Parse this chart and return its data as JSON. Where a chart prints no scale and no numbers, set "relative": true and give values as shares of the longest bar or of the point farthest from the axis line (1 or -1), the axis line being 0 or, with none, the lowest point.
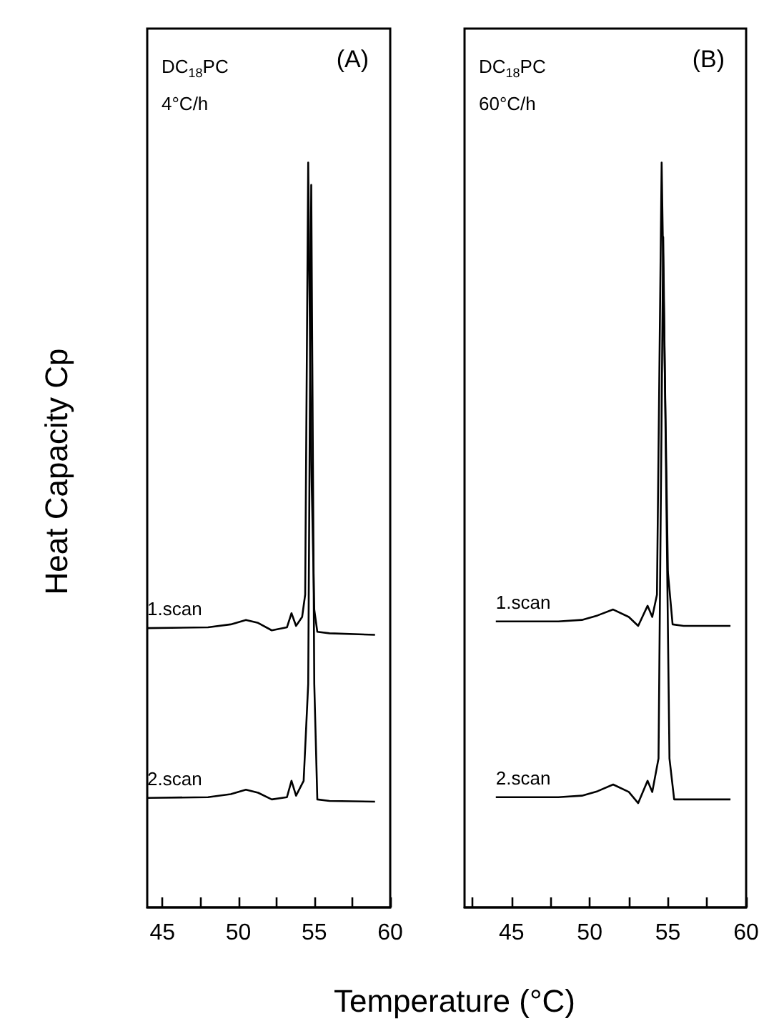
{
  "chart_data": [
    {
      "type": "line",
      "title": "(A)",
      "relative": true,
      "xlabel": "Temperature (°C)",
      "ylabel": "Heat Capacity Cp",
      "annotations": [
        "DC$_{18}$PC",
        "4°C/h"
      ],
      "xlim": [
        44,
        60
      ],
      "xticks": [
        45,
        {
          "value": 47.5,
          "label": null
        },
        50,
        {
          "value": 52.5,
          "label": null
        },
        55,
        {
          "value": 57.5,
          "label": null
        },
        60
      ],
      "series": [
        {
          "name": "1.scan",
          "color": "#000000",
          "x": [
            44,
            48,
            49.5,
            50.5,
            51.3,
            52.2,
            53.2,
            53.5,
            53.8,
            54.2,
            54.4,
            54.6,
            54.8,
            55.0,
            55.2,
            56,
            59
          ],
          "values": [
            0.375,
            0.376,
            0.38,
            0.386,
            0.382,
            0.372,
            0.376,
            0.395,
            0.378,
            0.39,
            0.42,
            1.0,
            0.6,
            0.4,
            0.37,
            0.368,
            0.366
          ]
        },
        {
          "name": "2.scan",
          "color": "#000000",
          "x": [
            44,
            48,
            49.5,
            50.5,
            51.3,
            52.2,
            53.2,
            53.5,
            53.8,
            54.3,
            54.6,
            54.8,
            55.0,
            55.2,
            56,
            59
          ],
          "values": [
            0.147,
            0.148,
            0.152,
            0.158,
            0.154,
            0.145,
            0.148,
            0.17,
            0.15,
            0.17,
            0.3,
            0.97,
            0.3,
            0.145,
            0.143,
            0.142
          ]
        }
      ]
    },
    {
      "type": "line",
      "title": "(B)",
      "relative": true,
      "annotations": [
        "DC$_{18}$PC",
        "60°C/h"
      ],
      "xlim": [
        42,
        60
      ],
      "xticks": [
        {
          "value": 42.5,
          "label": null
        },
        45,
        {
          "value": 47.5,
          "label": null
        },
        50,
        {
          "value": 52.5,
          "label": null
        },
        55,
        {
          "value": 57.5,
          "label": null
        },
        60
      ],
      "series": [
        {
          "name": "1.scan",
          "color": "#000000",
          "x": [
            44,
            48,
            49.5,
            50.5,
            51.5,
            52.5,
            53.1,
            53.7,
            54.0,
            54.3,
            54.6,
            55.0,
            55.3,
            56,
            59
          ],
          "values": [
            0.384,
            0.384,
            0.386,
            0.392,
            0.4,
            0.39,
            0.378,
            0.405,
            0.39,
            0.42,
            1.0,
            0.45,
            0.38,
            0.378,
            0.378
          ]
        },
        {
          "name": "2.scan",
          "color": "#000000",
          "x": [
            44,
            48,
            49.5,
            50.5,
            51.5,
            52.5,
            53.1,
            53.7,
            54.0,
            54.4,
            54.7,
            55.1,
            55.4,
            56,
            59
          ],
          "values": [
            0.148,
            0.148,
            0.15,
            0.156,
            0.165,
            0.155,
            0.14,
            0.17,
            0.155,
            0.2,
            0.9,
            0.2,
            0.145,
            0.145,
            0.145
          ]
        }
      ]
    }
  ]
}
